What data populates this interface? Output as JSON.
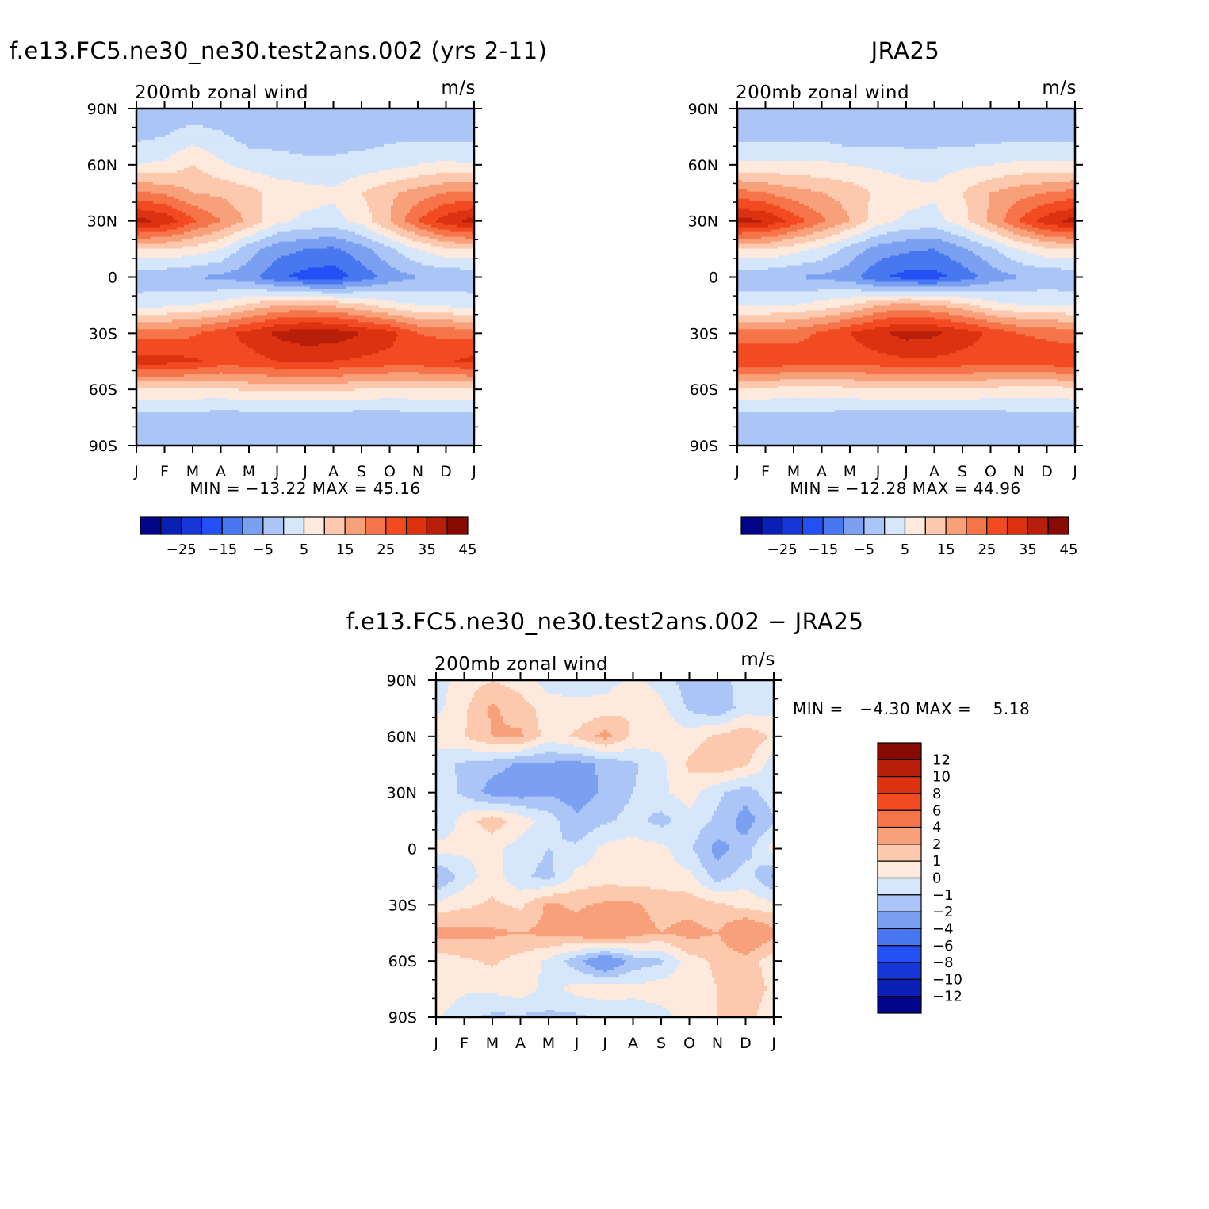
{
  "palette": {
    "diverging16": [
      "#02048a",
      "#0a1fb4",
      "#1637d8",
      "#2250f4",
      "#4878f0",
      "#7ba0f2",
      "#abc6f6",
      "#d6e6fb",
      "#feeadc",
      "#fcc9ae",
      "#f8a07a",
      "#f5744a",
      "#f24b22",
      "#dd3210",
      "#b81f0a",
      "#860a00"
    ],
    "diff_palette": [
      "#02048a",
      "#0a1fb4",
      "#1637d8",
      "#2250f4",
      "#4878f0",
      "#7ba0f2",
      "#abc6f6",
      "#d6e6fb",
      "#feeadc",
      "#fcc9ae",
      "#f8a07a",
      "#f5744a",
      "#f24b22",
      "#dd3210",
      "#b81f0a",
      "#860a00"
    ]
  },
  "chart_data": [
    {
      "id": "model",
      "type": "heatmap",
      "title": "f.e13.FC5.ne30_ne30.test2ans.002 (yrs 2-11)",
      "left_label": "200mb zonal wind",
      "right_label": "m/s",
      "x_ticks": [
        "J",
        "F",
        "M",
        "A",
        "M",
        "J",
        "J",
        "A",
        "S",
        "O",
        "N",
        "D",
        "J"
      ],
      "y_ticks": [
        "90N",
        "60N",
        "30N",
        "0",
        "30S",
        "60S",
        "90S"
      ],
      "stats": "MIN = −13.22 MAX =  45.16",
      "contour_levels": [
        -30,
        -25,
        -20,
        -15,
        -10,
        -5,
        0,
        5,
        10,
        15,
        20,
        25,
        30,
        35,
        40,
        45
      ],
      "colorbar_labels": [
        "−25",
        "−15",
        "−5",
        "5",
        "15",
        "25",
        "35",
        "45"
      ],
      "x_months": [
        0,
        1,
        2,
        3,
        4,
        5,
        6,
        7,
        8,
        9,
        10,
        11,
        12
      ],
      "y_lats": [
        90,
        75,
        60,
        45,
        30,
        15,
        0,
        -15,
        -30,
        -45,
        -60,
        -75,
        -90
      ],
      "z": [
        [
          1,
          1,
          1,
          1,
          0,
          0,
          0,
          0,
          0,
          0,
          1,
          1,
          1
        ],
        [
          4,
          5,
          8,
          6,
          3,
          3,
          3,
          3,
          3,
          4,
          4,
          4,
          4
        ],
        [
          10,
          11,
          15,
          11,
          8,
          7,
          6,
          6,
          7,
          8,
          10,
          11,
          10
        ],
        [
          26,
          24,
          20,
          19,
          17,
          13,
          12,
          11,
          15,
          19,
          22,
          25,
          26
        ],
        [
          42,
          39,
          31,
          25,
          19,
          11,
          9,
          8,
          12,
          20,
          30,
          38,
          42
        ],
        [
          15,
          15,
          13,
          10,
          2,
          -3,
          -5,
          -6,
          -2,
          4,
          10,
          14,
          15
        ],
        [
          1,
          1,
          0,
          -1,
          -3,
          -9,
          -12,
          -13,
          -8,
          -3,
          0,
          1,
          1
        ],
        [
          8,
          9,
          10,
          12,
          16,
          20,
          20,
          19,
          16,
          12,
          10,
          9,
          8
        ],
        [
          28,
          28,
          29,
          33,
          37,
          41,
          44,
          43,
          40,
          37,
          30,
          29,
          28
        ],
        [
          37,
          37,
          36,
          33,
          33,
          35,
          35,
          35,
          34,
          33,
          33,
          34,
          37
        ],
        [
          14,
          14,
          14,
          14,
          16,
          16,
          16,
          16,
          15,
          14,
          14,
          14,
          14
        ],
        [
          3,
          3,
          3,
          2,
          2,
          2,
          2,
          2,
          2,
          2,
          3,
          3,
          3
        ],
        [
          0,
          0,
          0,
          0,
          0,
          0,
          0,
          0,
          0,
          0,
          0,
          0,
          0
        ]
      ]
    },
    {
      "id": "obs",
      "type": "heatmap",
      "title": "JRA25",
      "left_label": "200mb zonal wind",
      "right_label": "m/s",
      "x_ticks": [
        "J",
        "F",
        "M",
        "A",
        "M",
        "J",
        "J",
        "A",
        "S",
        "O",
        "N",
        "D",
        "J"
      ],
      "y_ticks": [
        "90N",
        "60N",
        "30N",
        "0",
        "30S",
        "60S",
        "90S"
      ],
      "stats": "MIN = −12.28 MAX =  44.96",
      "contour_levels": [
        -30,
        -25,
        -20,
        -15,
        -10,
        -5,
        0,
        5,
        10,
        15,
        20,
        25,
        30,
        35,
        40,
        45
      ],
      "colorbar_labels": [
        "−25",
        "−15",
        "−5",
        "5",
        "15",
        "25",
        "35",
        "45"
      ],
      "x_months": [
        0,
        1,
        2,
        3,
        4,
        5,
        6,
        7,
        8,
        9,
        10,
        11,
        12
      ],
      "y_lats": [
        90,
        75,
        60,
        45,
        30,
        15,
        0,
        -15,
        -30,
        -45,
        -60,
        -75,
        -90
      ],
      "z": [
        [
          1,
          1,
          1,
          1,
          1,
          1,
          1,
          1,
          1,
          1,
          1,
          1,
          1
        ],
        [
          4,
          4,
          4,
          4,
          2,
          3,
          3,
          3,
          3,
          3,
          4,
          4,
          4
        ],
        [
          11,
          11,
          11,
          11,
          10,
          9,
          8,
          8,
          9,
          10,
          11,
          11,
          11
        ],
        [
          27,
          25,
          22,
          20,
          18,
          14,
          12,
          11,
          15,
          20,
          23,
          25,
          27
        ],
        [
          42,
          40,
          33,
          26,
          20,
          12,
          9,
          8,
          13,
          21,
          30,
          38,
          42
        ],
        [
          15,
          15,
          12,
          9,
          3,
          -2,
          -4,
          -5,
          -1,
          4,
          10,
          14,
          15
        ],
        [
          1,
          1,
          0,
          -1,
          -3,
          -9,
          -12,
          -12,
          -8,
          -3,
          0,
          1,
          1
        ],
        [
          9,
          9,
          10,
          12,
          15,
          20,
          22,
          20,
          17,
          12,
          10,
          10,
          9
        ],
        [
          27,
          28,
          28,
          31,
          35,
          39,
          42,
          41,
          38,
          34,
          30,
          29,
          27
        ],
        [
          35,
          34,
          33,
          32,
          32,
          33,
          34,
          34,
          33,
          32,
          33,
          33,
          35
        ],
        [
          14,
          14,
          13,
          13,
          14,
          15,
          15,
          15,
          15,
          14,
          13,
          13,
          14
        ],
        [
          3,
          3,
          3,
          3,
          2,
          2,
          2,
          2,
          2,
          2,
          3,
          3,
          3
        ],
        [
          0,
          0,
          0,
          0,
          0,
          0,
          0,
          0,
          0,
          0,
          0,
          0,
          0
        ]
      ]
    },
    {
      "id": "diff",
      "type": "heatmap",
      "title": "f.e13.FC5.ne30_ne30.test2ans.002 − JRA25",
      "left_label": "200mb zonal wind",
      "right_label": "m/s",
      "x_ticks": [
        "J",
        "F",
        "M",
        "A",
        "M",
        "J",
        "J",
        "A",
        "S",
        "O",
        "N",
        "D",
        "J"
      ],
      "y_ticks": [
        "90N",
        "60N",
        "30N",
        "0",
        "30S",
        "60S",
        "90S"
      ],
      "stats": "MIN =   −4.30 MAX =    5.18",
      "contour_levels": [
        -14,
        -12,
        -10,
        -8,
        -6,
        -4,
        -2,
        -1,
        0,
        1,
        2,
        4,
        6,
        8,
        10,
        12
      ],
      "colorbar_labels": [
        "12",
        "10",
        "8",
        "6",
        "4",
        "2",
        "1",
        "0",
        "−1",
        "−2",
        "−4",
        "−6",
        "−8",
        "−10",
        "−12"
      ],
      "x_months": [
        0,
        1,
        2,
        3,
        4,
        5,
        6,
        7,
        8,
        9,
        10,
        11,
        12
      ],
      "y_lats": [
        90,
        75,
        60,
        45,
        30,
        15,
        0,
        -15,
        -30,
        -45,
        -60,
        -75,
        -90
      ],
      "z": [
        [
          -0.5,
          0.5,
          1,
          0.5,
          -0.5,
          -0.5,
          -0.5,
          0.3,
          -0.5,
          -1.5,
          -1.5,
          -0.5,
          -0.5
        ],
        [
          -0.3,
          0.8,
          2.2,
          1.5,
          0.5,
          0.3,
          0.5,
          1.0,
          0.3,
          -1.2,
          -1.8,
          -0.5,
          -0.3
        ],
        [
          0.5,
          1.0,
          2.0,
          2.2,
          0.5,
          1.2,
          2.4,
          0.8,
          0.5,
          0.5,
          1.2,
          1.8,
          0.8
        ],
        [
          -0.6,
          -1.2,
          -1.6,
          -2.2,
          -2.2,
          -2.4,
          -1.8,
          -1.2,
          -0.3,
          1.2,
          1.8,
          1.2,
          -0.6
        ],
        [
          -0.3,
          -1.2,
          -2.5,
          -2.6,
          -2.2,
          -2.6,
          -1.8,
          -1.0,
          -0.2,
          0.5,
          -0.8,
          -1.6,
          -0.3
        ],
        [
          -1.2,
          0.5,
          1.6,
          0.6,
          -0.5,
          -1.8,
          -1.2,
          -0.6,
          -1.4,
          -0.4,
          -1.2,
          -2.5,
          -1.2
        ],
        [
          0.5,
          0.2,
          0.3,
          -0.5,
          -1.0,
          -0.8,
          0.3,
          0.5,
          0.3,
          -0.8,
          -2.4,
          -1.5,
          0.5
        ],
        [
          -2.2,
          -0.5,
          0.5,
          -0.8,
          -1.3,
          0.3,
          0.5,
          0.4,
          0.5,
          0.2,
          -1.5,
          -0.4,
          -2.2
        ],
        [
          0.3,
          0.8,
          1.2,
          0.8,
          2.2,
          1.8,
          2.2,
          2.2,
          1.6,
          1.6,
          1.2,
          0.6,
          0.3
        ],
        [
          2.4,
          2.4,
          2.2,
          2.0,
          2.3,
          2.5,
          3.8,
          2.5,
          2.0,
          2.4,
          2.0,
          3.5,
          2.4
        ],
        [
          0.4,
          0.8,
          1.2,
          0.6,
          -0.2,
          -1.6,
          -3.5,
          -1.6,
          -1.2,
          0.6,
          1.2,
          1.6,
          0.4
        ],
        [
          0.8,
          0.2,
          0.2,
          0.6,
          -0.4,
          0.4,
          0.6,
          0.3,
          0.6,
          0.5,
          1.0,
          1.6,
          0.8
        ],
        [
          0.2,
          -0.8,
          -1.2,
          -1.2,
          -1.2,
          -1.2,
          -0.8,
          -0.6,
          -0.4,
          0.5,
          1.0,
          1.5,
          0.2
        ]
      ]
    }
  ]
}
